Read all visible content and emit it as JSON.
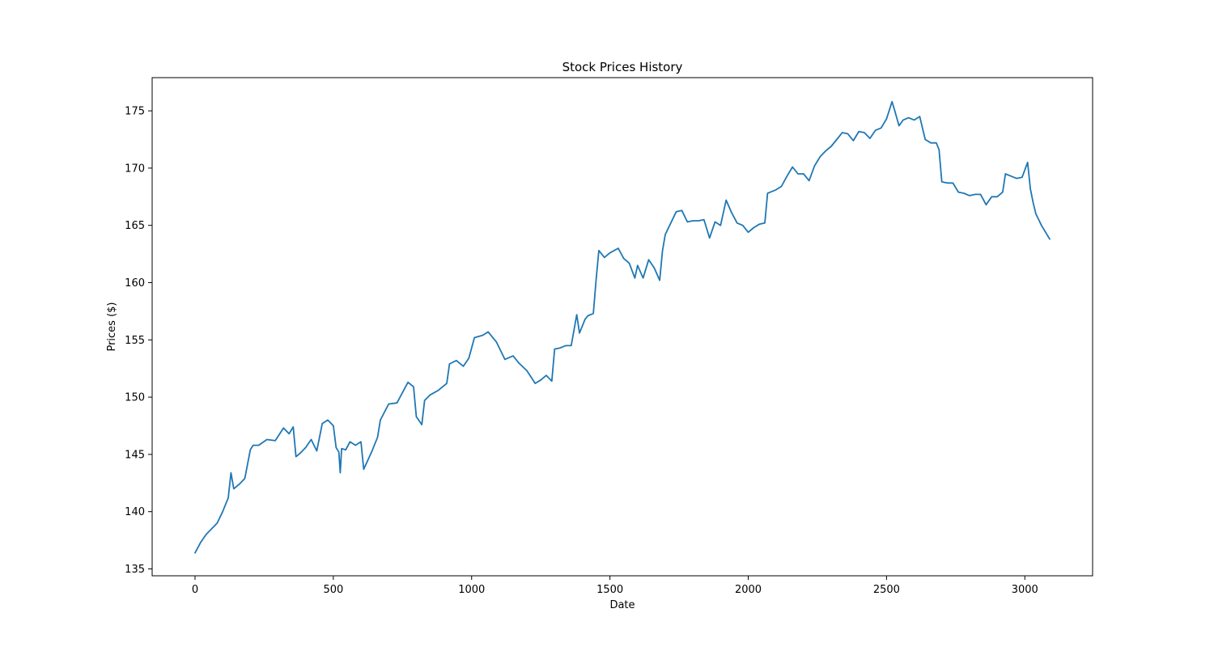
{
  "chart_data": {
    "type": "line",
    "title": "Stock Prices History",
    "xlabel": "Date",
    "ylabel": "Prices ($)",
    "xlim": [
      -155,
      3245
    ],
    "ylim": [
      134.4,
      177.9
    ],
    "xticks": [
      0,
      500,
      1000,
      1500,
      2000,
      2500,
      3000
    ],
    "yticks": [
      135,
      140,
      145,
      150,
      155,
      160,
      165,
      170,
      175
    ],
    "grid": false,
    "legend": "none",
    "line_color": "#1f77b4",
    "series": [
      {
        "x": [
          0,
          20,
          40,
          60,
          80,
          100,
          120,
          130,
          140,
          160,
          180,
          200,
          210,
          230,
          260,
          290,
          320,
          340,
          355,
          365,
          380,
          400,
          420,
          440,
          460,
          480,
          500,
          510,
          520,
          525,
          530,
          545,
          560,
          580,
          600,
          610,
          640,
          660,
          670,
          700,
          730,
          750,
          770,
          790,
          800,
          820,
          830,
          850,
          880,
          910,
          920,
          945,
          970,
          990,
          1010,
          1040,
          1060,
          1090,
          1120,
          1150,
          1170,
          1200,
          1230,
          1250,
          1270,
          1290,
          1300,
          1320,
          1340,
          1360,
          1380,
          1390,
          1410,
          1420,
          1440,
          1450,
          1460,
          1480,
          1500,
          1530,
          1550,
          1570,
          1590,
          1600,
          1620,
          1640,
          1660,
          1680,
          1690,
          1700,
          1720,
          1740,
          1760,
          1780,
          1800,
          1820,
          1840,
          1860,
          1880,
          1900,
          1920,
          1940,
          1960,
          1980,
          2000,
          2020,
          2040,
          2060,
          2070,
          2080,
          2100,
          2120,
          2140,
          2160,
          2180,
          2200,
          2220,
          2240,
          2260,
          2280,
          2300,
          2320,
          2340,
          2360,
          2380,
          2400,
          2420,
          2440,
          2460,
          2480,
          2500,
          2520,
          2530,
          2545,
          2560,
          2580,
          2600,
          2620,
          2640,
          2660,
          2680,
          2690,
          2700,
          2720,
          2740,
          2760,
          2780,
          2800,
          2820,
          2840,
          2860,
          2880,
          2900,
          2920,
          2930,
          2950,
          2970,
          2990,
          3010,
          3020,
          3030,
          3040,
          3050,
          3060,
          3070,
          3090
        ],
        "y": [
          136.4,
          137.3,
          138.0,
          138.5,
          139.0,
          140.0,
          141.2,
          143.4,
          142.0,
          142.4,
          142.9,
          145.4,
          145.8,
          145.8,
          146.3,
          146.2,
          147.3,
          146.8,
          147.4,
          144.8,
          145.1,
          145.6,
          146.3,
          145.3,
          147.7,
          148.0,
          147.5,
          145.6,
          145.2,
          143.4,
          145.5,
          145.4,
          146.1,
          145.8,
          146.1,
          143.7,
          145.3,
          146.5,
          148.0,
          149.4,
          149.5,
          150.4,
          151.3,
          150.9,
          148.3,
          147.6,
          149.7,
          150.2,
          150.6,
          151.2,
          152.9,
          153.2,
          152.7,
          153.4,
          155.2,
          155.4,
          155.7,
          154.8,
          153.3,
          153.6,
          153.0,
          152.3,
          151.2,
          151.5,
          151.9,
          151.4,
          154.2,
          154.3,
          154.5,
          154.5,
          157.2,
          155.6,
          156.8,
          157.1,
          157.3,
          160.2,
          162.8,
          162.2,
          162.6,
          163.0,
          162.1,
          161.7,
          160.4,
          161.5,
          160.4,
          162.0,
          161.3,
          160.2,
          162.8,
          164.2,
          165.2,
          166.2,
          166.3,
          165.3,
          165.4,
          165.4,
          165.5,
          163.9,
          165.3,
          165.0,
          167.2,
          166.1,
          165.2,
          165.0,
          164.4,
          164.8,
          165.1,
          165.2,
          167.8,
          167.9,
          168.1,
          168.4,
          169.3,
          170.1,
          169.5,
          169.5,
          168.9,
          170.2,
          171.0,
          171.5,
          171.9,
          172.5,
          173.1,
          173.0,
          172.4,
          173.2,
          173.1,
          172.6,
          173.3,
          173.5,
          174.3,
          175.8,
          175.0,
          173.7,
          174.2,
          174.4,
          174.2,
          174.5,
          172.5,
          172.2,
          172.2,
          171.6,
          168.8,
          168.7,
          168.7,
          167.9,
          167.8,
          167.6,
          167.7,
          167.7,
          166.8,
          167.5,
          167.5,
          167.9,
          169.5,
          169.3,
          169.1,
          169.2,
          170.5,
          168.2,
          167.0,
          166.0,
          165.5,
          165.0,
          164.6,
          163.8
        ]
      }
    ]
  }
}
